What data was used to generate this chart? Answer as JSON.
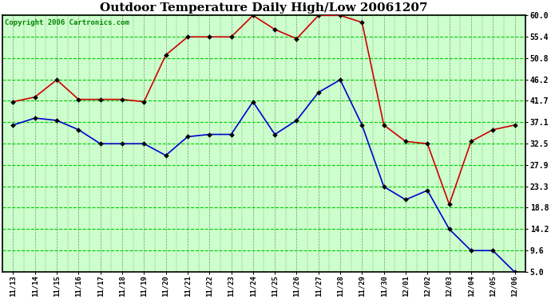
{
  "title": "Outdoor Temperature Daily High/Low 20061207",
  "copyright": "Copyright 2006 Cartronics.com",
  "x_labels": [
    "11/13",
    "11/14",
    "11/15",
    "11/16",
    "11/17",
    "11/18",
    "11/19",
    "11/20",
    "11/21",
    "11/22",
    "11/23",
    "11/24",
    "11/25",
    "11/26",
    "11/27",
    "11/28",
    "11/29",
    "11/30",
    "12/01",
    "12/02",
    "12/03",
    "12/04",
    "12/05",
    "12/06"
  ],
  "high_temps": [
    41.5,
    42.5,
    46.2,
    42.0,
    42.0,
    42.0,
    41.5,
    51.5,
    55.4,
    55.4,
    55.4,
    60.0,
    57.0,
    55.0,
    60.0,
    60.0,
    58.5,
    36.5,
    33.0,
    32.5,
    19.5,
    33.0,
    35.5,
    36.5
  ],
  "low_temps": [
    36.5,
    38.0,
    37.5,
    35.5,
    32.5,
    32.5,
    32.5,
    30.0,
    34.0,
    34.5,
    34.5,
    41.5,
    34.5,
    37.5,
    43.5,
    46.2,
    36.5,
    23.3,
    20.5,
    22.5,
    14.2,
    9.6,
    9.6,
    5.0
  ],
  "high_color": "#cc0000",
  "low_color": "#0000cc",
  "bg_color": "#ffffff",
  "plot_bg_color": "#ccffcc",
  "grid_h_color": "#00cc00",
  "grid_v_color": "#888888",
  "y_ticks": [
    5.0,
    9.6,
    14.2,
    18.8,
    23.3,
    27.9,
    32.5,
    37.1,
    41.7,
    46.2,
    50.8,
    55.4,
    60.0
  ],
  "y_min": 5.0,
  "y_max": 60.0,
  "title_fontsize": 11,
  "copyright_fontsize": 6.5
}
